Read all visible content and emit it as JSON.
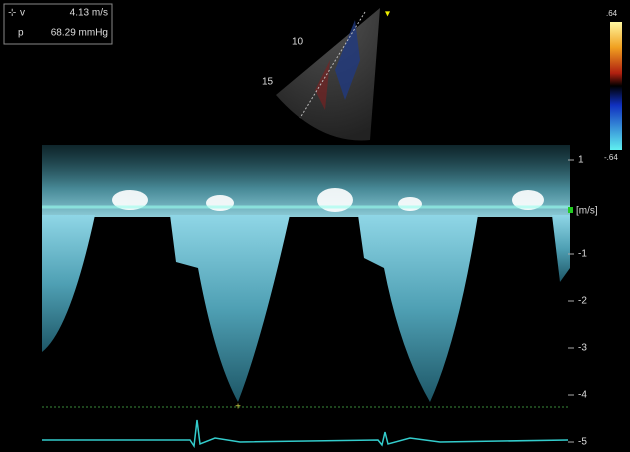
{
  "measurement": {
    "velocity_label": "v",
    "velocity": "4.13 m/s",
    "pressure_label": "p",
    "pressure": "68.29 mmHg"
  },
  "sector": {
    "depth_labels": [
      "10",
      "15"
    ]
  },
  "color_scale": {
    "max": ".64",
    "min": "-.64"
  },
  "velocity_scale": {
    "labels": [
      "1",
      "-1",
      "-2",
      "-3",
      "-4",
      "-5"
    ],
    "unit": "[m/s]"
  }
}
